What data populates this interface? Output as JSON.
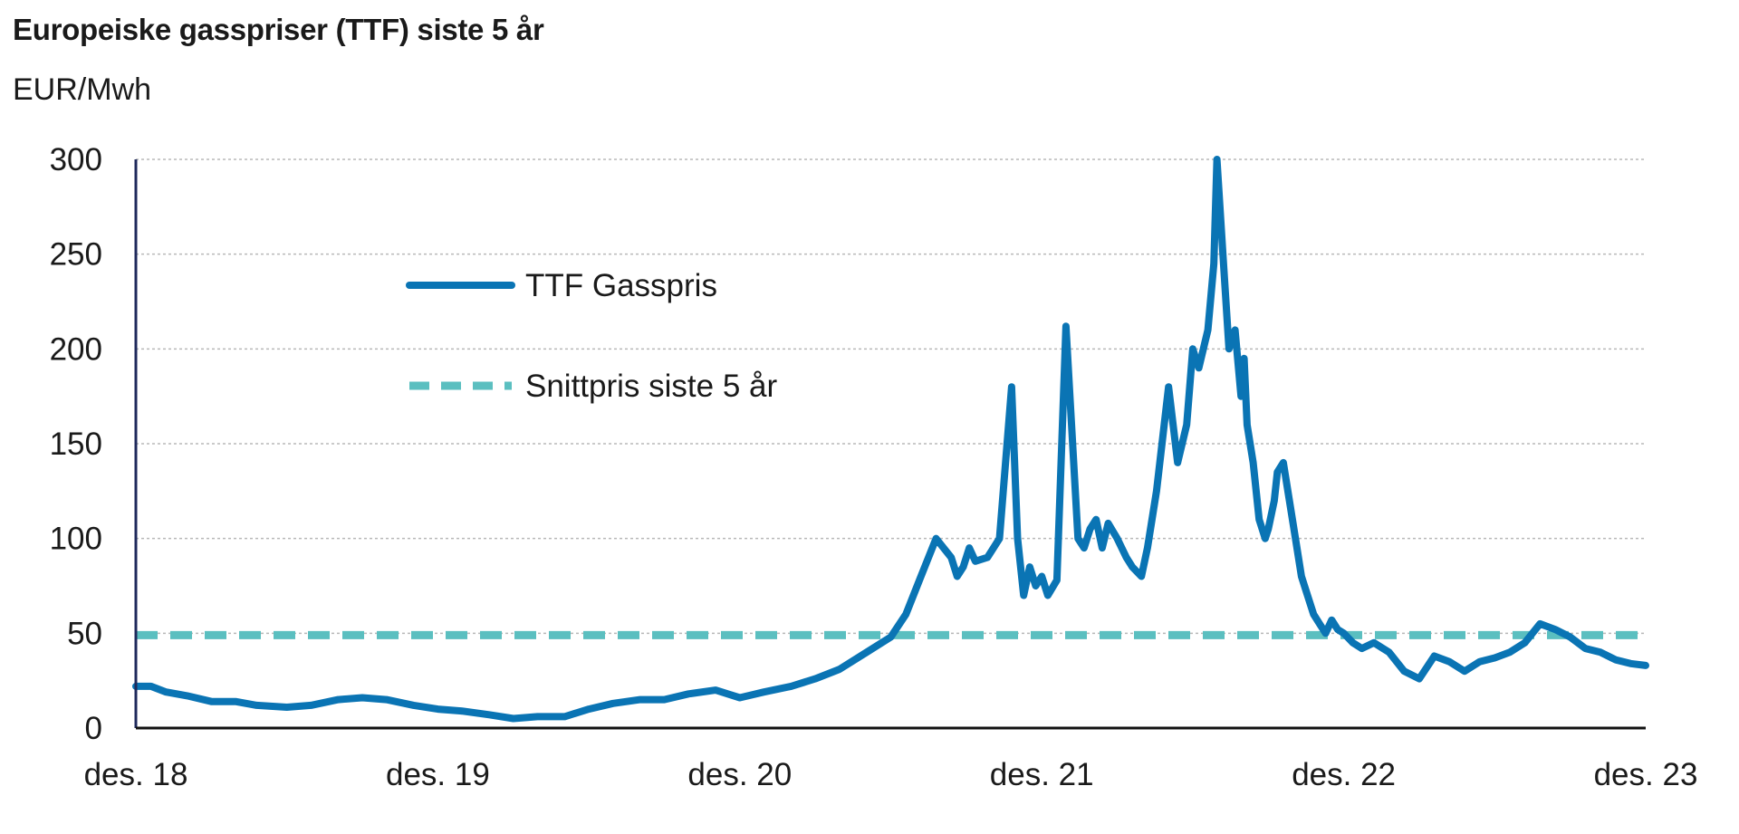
{
  "chart_data": {
    "type": "line",
    "title": "Europeiske gasspriser (TTF) siste 5 år",
    "ylabel": "EUR/Mwh",
    "xlabel": "",
    "ylim": [
      0,
      300
    ],
    "yticks": [
      0,
      50,
      100,
      150,
      200,
      250,
      300
    ],
    "xlim": [
      0,
      5
    ],
    "xticks": [
      {
        "x": 0,
        "label": "des. 18"
      },
      {
        "x": 1,
        "label": "des. 19"
      },
      {
        "x": 2,
        "label": "des. 20"
      },
      {
        "x": 3,
        "label": "des. 21"
      },
      {
        "x": 4,
        "label": "des. 22"
      },
      {
        "x": 5,
        "label": "des. 23"
      }
    ],
    "grid": true,
    "legend_position": "upper-left-inside",
    "series": [
      {
        "name": "TTF Gasspris",
        "color": "#0a74b4",
        "style": "solid",
        "x": [
          0,
          0.05,
          0.1,
          0.17,
          0.25,
          0.33,
          0.4,
          0.5,
          0.58,
          0.67,
          0.75,
          0.83,
          0.92,
          1.0,
          1.08,
          1.17,
          1.25,
          1.33,
          1.42,
          1.5,
          1.58,
          1.67,
          1.75,
          1.83,
          1.92,
          2.0,
          2.08,
          2.17,
          2.25,
          2.33,
          2.42,
          2.5,
          2.55,
          2.6,
          2.65,
          2.7,
          2.72,
          2.74,
          2.76,
          2.78,
          2.82,
          2.86,
          2.9,
          2.92,
          2.94,
          2.96,
          2.98,
          3.0,
          3.02,
          3.05,
          3.08,
          3.12,
          3.14,
          3.16,
          3.18,
          3.2,
          3.22,
          3.25,
          3.28,
          3.3,
          3.33,
          3.35,
          3.38,
          3.42,
          3.45,
          3.48,
          3.5,
          3.52,
          3.55,
          3.57,
          3.58,
          3.6,
          3.62,
          3.64,
          3.66,
          3.67,
          3.68,
          3.7,
          3.72,
          3.74,
          3.75,
          3.77,
          3.78,
          3.8,
          3.82,
          3.84,
          3.86,
          3.88,
          3.9,
          3.92,
          3.94,
          3.96,
          3.98,
          4.0,
          4.03,
          4.06,
          4.1,
          4.15,
          4.2,
          4.25,
          4.3,
          4.35,
          4.4,
          4.45,
          4.5,
          4.55,
          4.6,
          4.65,
          4.7,
          4.75,
          4.8,
          4.85,
          4.9,
          4.95,
          5.0
        ],
        "y": [
          22,
          22,
          19,
          17,
          14,
          14,
          12,
          11,
          12,
          15,
          16,
          15,
          12,
          10,
          9,
          7,
          5,
          6,
          6,
          10,
          13,
          15,
          15,
          18,
          20,
          16,
          19,
          22,
          26,
          31,
          40,
          48,
          60,
          80,
          100,
          90,
          80,
          85,
          95,
          88,
          90,
          100,
          180,
          100,
          70,
          85,
          75,
          80,
          70,
          78,
          212,
          100,
          95,
          105,
          110,
          95,
          108,
          100,
          90,
          85,
          80,
          95,
          125,
          180,
          140,
          160,
          200,
          190,
          210,
          245,
          300,
          250,
          200,
          210,
          175,
          195,
          160,
          140,
          110,
          100,
          105,
          120,
          135,
          140,
          120,
          100,
          80,
          70,
          60,
          55,
          50,
          57,
          52,
          50,
          45,
          42,
          45,
          40,
          30,
          26,
          38,
          35,
          30,
          35,
          37,
          40,
          45,
          55,
          52,
          48,
          42,
          40,
          36,
          34,
          33
        ]
      },
      {
        "name": "Snittpris siste 5 år",
        "color": "#5bbfc0",
        "style": "dashed",
        "x": [
          0,
          5
        ],
        "y": [
          49,
          49
        ]
      }
    ]
  }
}
